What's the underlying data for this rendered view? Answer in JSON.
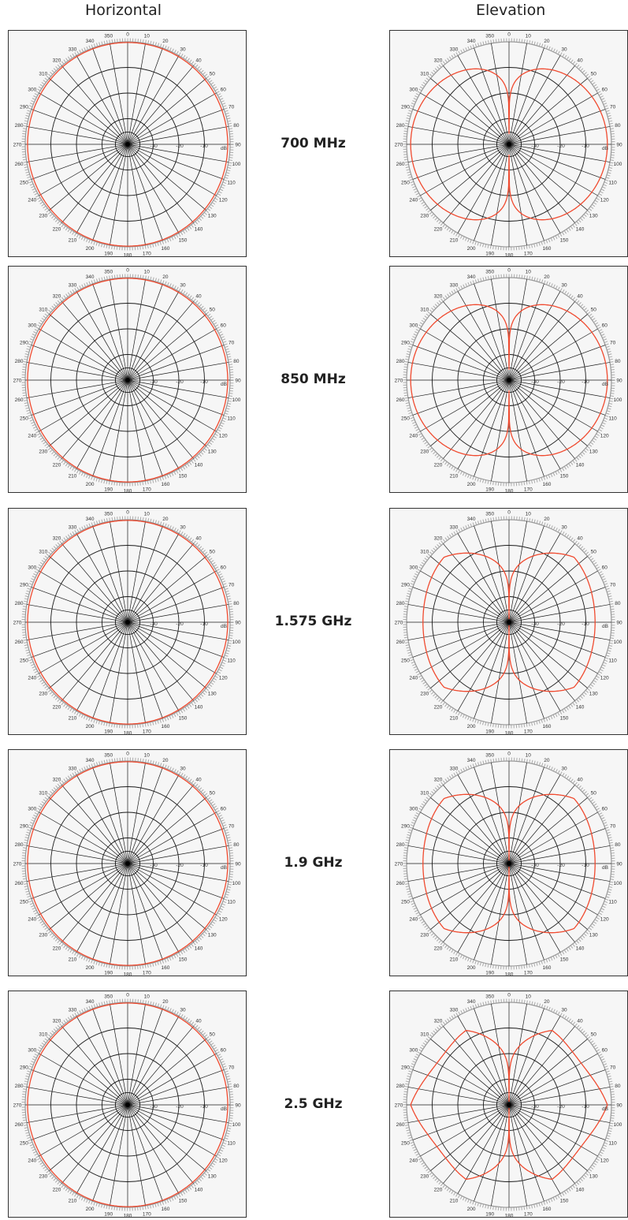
{
  "column_titles": {
    "horizontal": "Horizontal",
    "elevation": "Elevation"
  },
  "colors": {
    "pattern": "#f04a2f",
    "grid": "#1a1a1a",
    "frame": "#333333",
    "background": "#f6f6f6"
  },
  "polar_labels": {
    "angles": [
      "0",
      "10",
      "20",
      "30",
      "40",
      "50",
      "60",
      "70",
      "80",
      "90",
      "100",
      "110",
      "120",
      "130",
      "140",
      "150",
      "160",
      "170",
      "180",
      "190",
      "200",
      "210",
      "220",
      "230",
      "240",
      "250",
      "260",
      "270",
      "280",
      "290",
      "300",
      "310",
      "320",
      "330",
      "340",
      "350"
    ],
    "radial": [
      "-30",
      "-20",
      "-10",
      "dB"
    ]
  },
  "chart_data": [
    {
      "type": "polar",
      "plane": "horizontal",
      "frequency_label": "700 MHz",
      "pattern_shape": "omni",
      "rlim": [
        -40,
        0
      ]
    },
    {
      "type": "polar",
      "plane": "elevation",
      "frequency_label": "700 MHz",
      "pattern_shape": "lobes",
      "lobes": 1,
      "rlim": [
        -40,
        0
      ]
    },
    {
      "type": "polar",
      "plane": "horizontal",
      "frequency_label": "850 MHz",
      "pattern_shape": "omni",
      "rlim": [
        -40,
        0
      ]
    },
    {
      "type": "polar",
      "plane": "elevation",
      "frequency_label": "850 MHz",
      "pattern_shape": "lobes",
      "lobes": 1,
      "rlim": [
        -40,
        0
      ]
    },
    {
      "type": "polar",
      "plane": "horizontal",
      "frequency_label": "1.575 GHz",
      "pattern_shape": "omni",
      "rlim": [
        -40,
        0
      ]
    },
    {
      "type": "polar",
      "plane": "elevation",
      "frequency_label": "1.575 GHz",
      "pattern_shape": "lobes",
      "lobes": 2,
      "rlim": [
        -40,
        0
      ]
    },
    {
      "type": "polar",
      "plane": "horizontal",
      "frequency_label": "1.9 GHz",
      "pattern_shape": "omni",
      "rlim": [
        -40,
        0
      ]
    },
    {
      "type": "polar",
      "plane": "elevation",
      "frequency_label": "1.9 GHz",
      "pattern_shape": "lobes",
      "lobes": 2,
      "rlim": [
        -40,
        0
      ]
    },
    {
      "type": "polar",
      "plane": "horizontal",
      "frequency_label": "2.5 GHz",
      "pattern_shape": "omni",
      "rlim": [
        -40,
        0
      ]
    },
    {
      "type": "polar",
      "plane": "elevation",
      "frequency_label": "2.5 GHz",
      "pattern_shape": "lobes",
      "lobes": 3,
      "rlim": [
        -40,
        0
      ]
    }
  ]
}
